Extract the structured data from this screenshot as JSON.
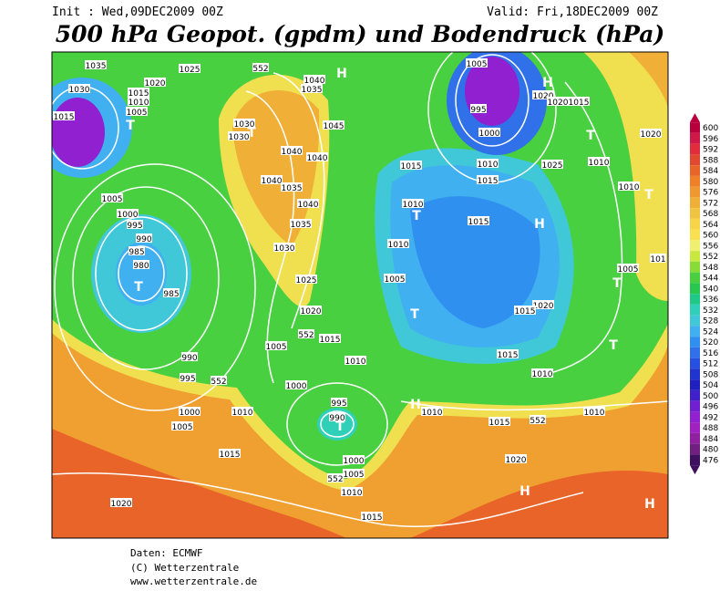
{
  "header": {
    "init": "Init : Wed,09DEC2009 00Z",
    "valid": "Valid: Fri,18DEC2009 00Z",
    "title": "500 hPa Geopot. (gpdm) und Bodendruck (hPa)"
  },
  "legend": {
    "labels": [
      600,
      596,
      592,
      588,
      584,
      580,
      576,
      572,
      568,
      564,
      560,
      556,
      552,
      548,
      544,
      540,
      536,
      532,
      528,
      524,
      520,
      516,
      512,
      508,
      504,
      500,
      496,
      492,
      488,
      484,
      480,
      476
    ],
    "colors": [
      "#b8003c",
      "#d01848",
      "#e02c3c",
      "#e04830",
      "#e86428",
      "#f08028",
      "#f09830",
      "#f0b038",
      "#f0c440",
      "#f8d448",
      "#f8e050",
      "#f0f070",
      "#c8e840",
      "#88dc38",
      "#48d040",
      "#28c850",
      "#20c888",
      "#30d0b8",
      "#40c8d8",
      "#40b0f0",
      "#3090f0",
      "#3070e8",
      "#2850e0",
      "#2034d0",
      "#2020c0",
      "#4020c8",
      "#7020d0",
      "#9020d0",
      "#a020c0",
      "#9020a0",
      "#702080",
      "#401060"
    ]
  },
  "map": {
    "labels": [
      "1035",
      "1025",
      "552",
      "1040",
      "1035",
      "H",
      "1030",
      "1015",
      "1020",
      "1010",
      "1005",
      "1015",
      "T",
      "1030",
      "1030",
      "T",
      "1045",
      "1040",
      "1040",
      "1040",
      "1035",
      "1040",
      "1035",
      "1030",
      "1025",
      "1020",
      "552",
      "1015",
      "1005",
      "1010",
      "1005",
      "1000",
      "995",
      "990",
      "985",
      "980",
      "T",
      "985",
      "990",
      "995",
      "552",
      "1000",
      "995",
      "990",
      "T",
      "1000",
      "1010",
      "1005",
      "1015",
      "1000",
      "1005",
      "552",
      "1010",
      "1020",
      "1015",
      "H",
      "1010",
      "1015",
      "552",
      "1010",
      "1020",
      "H",
      "H",
      "1005",
      "995",
      "1000",
      "1010",
      "1015",
      "1015",
      "1010",
      "T",
      "1015",
      "1010",
      "1005",
      "T",
      "H",
      "1025",
      "1020",
      "1020",
      "1015",
      "H",
      "T",
      "1020",
      "1010",
      "1010",
      "T",
      "1005",
      "101",
      "T",
      "1020",
      "1015",
      "T",
      "1015",
      "1010"
    ]
  },
  "footer": {
    "lines": [
      "Daten: ECMWF",
      "(C) Wetterzentrale",
      "www.wetterzentrale.de"
    ]
  }
}
